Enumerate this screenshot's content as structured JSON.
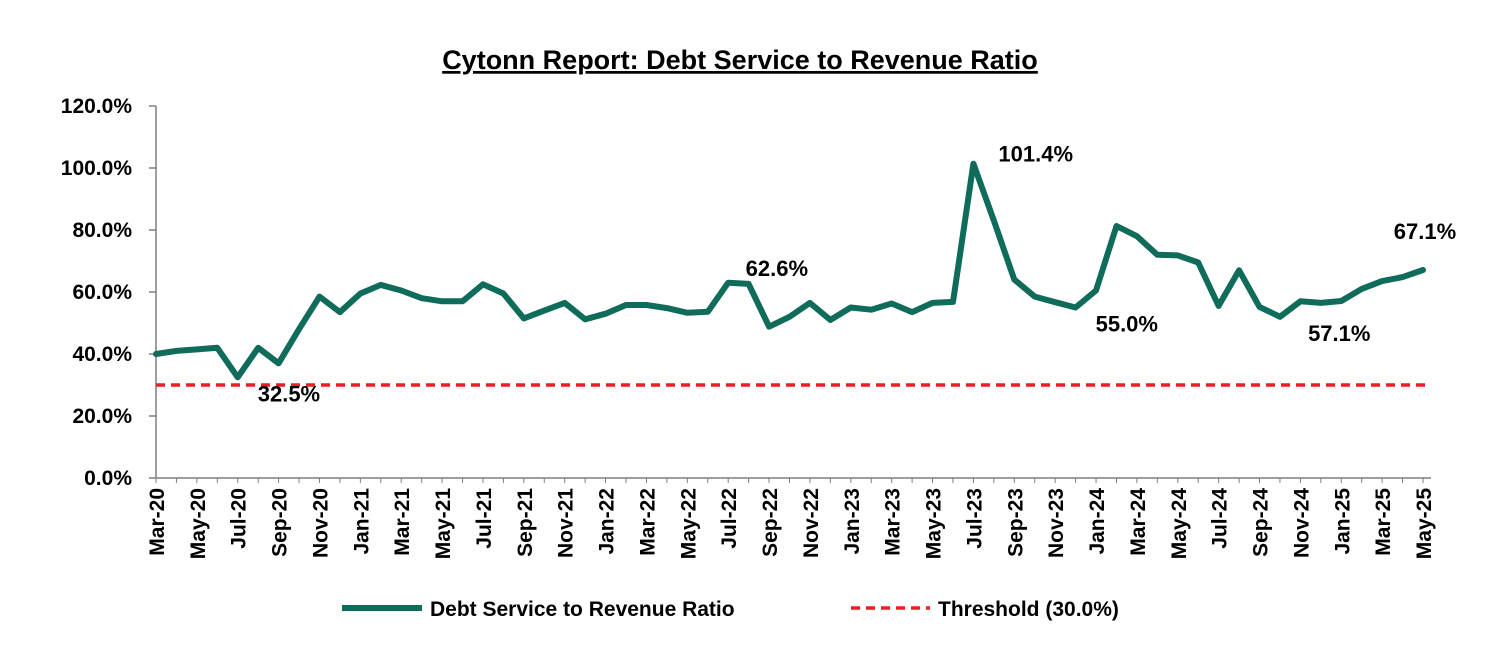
{
  "chart_data": {
    "type": "line",
    "title": "Cytonn Report: Debt Service to Revenue Ratio",
    "xlabel": "",
    "ylabel": "",
    "ylim": [
      0,
      120
    ],
    "y_ticks": [
      "0.0%",
      "20.0%",
      "40.0%",
      "60.0%",
      "80.0%",
      "100.0%",
      "120.0%"
    ],
    "y_tick_values": [
      0,
      20,
      40,
      60,
      80,
      100,
      120
    ],
    "x_tick_labels": [
      "Mar-20",
      "May-20",
      "Jul-20",
      "Sep-20",
      "Nov-20",
      "Jan-21",
      "Mar-21",
      "May-21",
      "Jul-21",
      "Sep-21",
      "Nov-21",
      "Jan-22",
      "Mar-22",
      "May-22",
      "Jul-22",
      "Sep-22",
      "Nov-22",
      "Jan-23",
      "Mar-23",
      "May-23",
      "Jul-23",
      "Sep-23",
      "Nov-23",
      "Jan-24",
      "Mar-24",
      "May-24",
      "Jul-24",
      "Sep-24",
      "Nov-24",
      "Jan-25",
      "Mar-25",
      "May-25"
    ],
    "grid": false,
    "legend_position": "bottom",
    "series": [
      {
        "name": "Debt Service to Revenue Ratio",
        "color": "#0f6b5a",
        "style": "solid",
        "values": [
          40.0,
          41.0,
          41.5,
          42.0,
          32.5,
          42.0,
          37.0,
          48.0,
          58.5,
          53.5,
          59.5,
          62.3,
          60.5,
          58.0,
          57.0,
          57.0,
          62.5,
          59.5,
          51.5,
          54.0,
          56.5,
          51.2,
          53.0,
          55.8,
          55.8,
          54.8,
          53.3,
          53.6,
          63.0,
          62.6,
          48.8,
          52.0,
          56.5,
          51.0,
          55.0,
          54.3,
          56.3,
          53.5,
          56.5,
          56.8,
          101.4,
          83.0,
          64.0,
          58.5,
          56.7,
          55.0,
          60.5,
          81.3,
          78.0,
          72.0,
          71.8,
          69.5,
          55.5,
          67.0,
          55.2,
          52.0,
          57.0,
          56.5,
          57.1,
          61.0,
          63.5,
          64.8,
          67.1
        ]
      },
      {
        "name": "Threshold (30.0%)",
        "color": "#ee1d23",
        "style": "dashed",
        "constant": 30.0
      }
    ],
    "annotations": [
      {
        "text": "32.5%",
        "index": 4,
        "value": 32.5,
        "anchor": "below-right"
      },
      {
        "text": "62.6%",
        "index": 29,
        "value": 62.6,
        "anchor": "above-right"
      },
      {
        "text": "101.4%",
        "index": 40,
        "value": 101.4,
        "anchor": "right"
      },
      {
        "text": "55.0%",
        "index": 45,
        "value": 55.0,
        "anchor": "below-right"
      },
      {
        "text": "57.1%",
        "index": 58,
        "value": 57.1,
        "anchor": "below"
      },
      {
        "text": "67.1%",
        "index": 62,
        "value": 67.1,
        "anchor": "above"
      }
    ]
  }
}
